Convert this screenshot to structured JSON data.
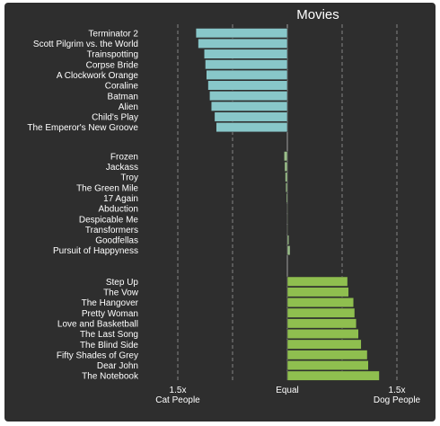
{
  "chart_data": {
    "type": "bar",
    "orientation": "horizontal",
    "title": "Movies",
    "xlim": [
      -2.5,
      2.5
    ],
    "grid": true,
    "x_ticks": [
      {
        "value": -2,
        "label": "1.5x",
        "sublabel": "Cat People"
      },
      {
        "value": 0,
        "label": "Equal",
        "sublabel": ""
      },
      {
        "value": 2,
        "label": "1.5x",
        "sublabel": "Dog People"
      }
    ],
    "gridlines": [
      -2,
      -1,
      1,
      2
    ],
    "colors": {
      "cat": "#88c7c9",
      "dog": "#8fbf4f",
      "neutral": "#9bbf8a"
    },
    "groups": [
      {
        "name": "cat",
        "items": [
          {
            "label": "Terminator 2",
            "value": -1.67
          },
          {
            "label": "Scott Pilgrim vs. the World",
            "value": -1.63
          },
          {
            "label": "Trainspotting",
            "value": -1.52
          },
          {
            "label": "Corpse Bride",
            "value": -1.5
          },
          {
            "label": "A Clockwork Orange",
            "value": -1.48
          },
          {
            "label": "Coraline",
            "value": -1.45
          },
          {
            "label": "Batman",
            "value": -1.42
          },
          {
            "label": "Alien",
            "value": -1.39
          },
          {
            "label": "Child's Play",
            "value": -1.33
          },
          {
            "label": "The Emperor's New Groove",
            "value": -1.3
          }
        ]
      },
      {
        "name": "neutral",
        "items": [
          {
            "label": "Frozen",
            "value": -0.06
          },
          {
            "label": "Jackass",
            "value": -0.05
          },
          {
            "label": "Troy",
            "value": -0.04
          },
          {
            "label": "The Green Mile",
            "value": -0.03
          },
          {
            "label": "17 Again",
            "value": -0.02
          },
          {
            "label": "Abduction",
            "value": 0.0
          },
          {
            "label": "Despicable Me",
            "value": 0.0
          },
          {
            "label": "Transformers",
            "value": 0.0
          },
          {
            "label": "Goodfellas",
            "value": 0.03
          },
          {
            "label": "Pursuit of Happyness",
            "value": 0.05
          }
        ]
      },
      {
        "name": "dog",
        "items": [
          {
            "label": "Step Up",
            "value": 1.1
          },
          {
            "label": "The Vow",
            "value": 1.12
          },
          {
            "label": "The Hangover",
            "value": 1.21
          },
          {
            "label": "Pretty Woman",
            "value": 1.23
          },
          {
            "label": "Love and Basketball",
            "value": 1.26
          },
          {
            "label": "The Last Song",
            "value": 1.3
          },
          {
            "label": "The Blind Side",
            "value": 1.35
          },
          {
            "label": "Fifty Shades of Grey",
            "value": 1.46
          },
          {
            "label": "Dear John",
            "value": 1.48
          },
          {
            "label": "The Notebook",
            "value": 1.68
          }
        ]
      }
    ]
  }
}
